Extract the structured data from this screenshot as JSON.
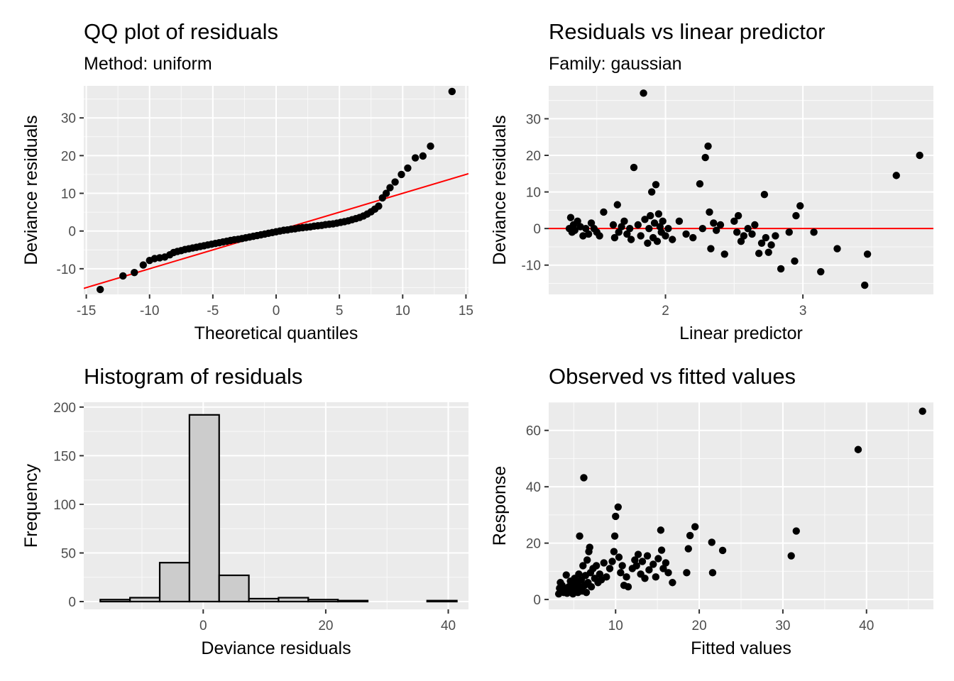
{
  "chart_data": [
    {
      "type": "scatter",
      "title": "QQ plot of residuals",
      "subtitle": "Method: uniform",
      "xlabel": "Theoretical quantiles",
      "ylabel": "Deviance residuals",
      "xlim": [
        -15.2,
        15.2
      ],
      "ylim": [
        -16.8,
        38.5
      ],
      "xticks": [
        -15,
        -10,
        -5,
        0,
        5,
        10,
        15
      ],
      "xtick_labels": [
        "-15",
        "-10",
        "-5",
        "0",
        "5",
        "10",
        "15"
      ],
      "yticks": [
        -10,
        0,
        10,
        20,
        30
      ],
      "ytick_labels": [
        "-10",
        "0",
        "10",
        "20",
        "30"
      ],
      "reference_line": {
        "intercept": 0,
        "slope": 1,
        "color": "#ff0000"
      },
      "point_color": "#000000",
      "grid": true,
      "background": "#ebebeb",
      "points": [
        [
          -13.9,
          -15.5
        ],
        [
          -12.1,
          -11.9
        ],
        [
          -11.2,
          -11.0
        ],
        [
          -10.5,
          -9.0
        ],
        [
          -10.0,
          -7.8
        ],
        [
          -9.6,
          -7.3
        ],
        [
          -9.2,
          -7.1
        ],
        [
          -8.8,
          -6.9
        ],
        [
          -8.4,
          -6.3
        ],
        [
          -8.1,
          -5.7
        ],
        [
          -7.8,
          -5.4
        ],
        [
          -7.5,
          -5.2
        ],
        [
          -7.2,
          -4.9
        ],
        [
          -6.9,
          -4.7
        ],
        [
          -6.6,
          -4.5
        ],
        [
          -6.3,
          -4.3
        ],
        [
          -6.0,
          -4.1
        ],
        [
          -5.7,
          -3.9
        ],
        [
          -5.4,
          -3.7
        ],
        [
          -5.1,
          -3.5
        ],
        [
          -4.8,
          -3.3
        ],
        [
          -4.5,
          -3.1
        ],
        [
          -4.2,
          -2.9
        ],
        [
          -3.9,
          -2.7
        ],
        [
          -3.6,
          -2.5
        ],
        [
          -3.3,
          -2.3
        ],
        [
          -3.0,
          -2.2
        ],
        [
          -2.7,
          -2.0
        ],
        [
          -2.4,
          -1.8
        ],
        [
          -2.1,
          -1.6
        ],
        [
          -1.8,
          -1.4
        ],
        [
          -1.5,
          -1.2
        ],
        [
          -1.2,
          -1.0
        ],
        [
          -0.9,
          -0.8
        ],
        [
          -0.6,
          -0.6
        ],
        [
          -0.3,
          -0.4
        ],
        [
          0.0,
          -0.2
        ],
        [
          0.3,
          0.0
        ],
        [
          0.6,
          0.2
        ],
        [
          0.9,
          0.3
        ],
        [
          1.2,
          0.5
        ],
        [
          1.5,
          0.6
        ],
        [
          1.8,
          0.8
        ],
        [
          2.1,
          0.9
        ],
        [
          2.4,
          1.0
        ],
        [
          2.7,
          1.1
        ],
        [
          3.0,
          1.3
        ],
        [
          3.3,
          1.4
        ],
        [
          3.6,
          1.5
        ],
        [
          3.9,
          1.7
        ],
        [
          4.2,
          1.8
        ],
        [
          4.5,
          1.9
        ],
        [
          4.8,
          2.1
        ],
        [
          5.1,
          2.3
        ],
        [
          5.4,
          2.5
        ],
        [
          5.7,
          2.7
        ],
        [
          6.0,
          3.0
        ],
        [
          6.3,
          3.3
        ],
        [
          6.6,
          3.6
        ],
        [
          6.9,
          4.0
        ],
        [
          7.2,
          4.5
        ],
        [
          7.5,
          5.1
        ],
        [
          7.8,
          5.8
        ],
        [
          8.1,
          6.6
        ],
        [
          8.4,
          8.8
        ],
        [
          8.7,
          10.0
        ],
        [
          9.0,
          11.5
        ],
        [
          9.4,
          13.0
        ],
        [
          9.9,
          15.0
        ],
        [
          10.4,
          16.7
        ],
        [
          11.0,
          19.4
        ],
        [
          11.6,
          19.9
        ],
        [
          12.2,
          22.5
        ],
        [
          13.9,
          37.0
        ]
      ]
    },
    {
      "type": "scatter",
      "title": "Residuals vs linear predictor",
      "subtitle": "Family: gaussian",
      "xlabel": "Linear predictor",
      "ylabel": "Deviance residuals",
      "xlim": [
        1.15,
        3.95
      ],
      "ylim": [
        -18,
        39
      ],
      "xticks": [
        2,
        3
      ],
      "xtick_labels": [
        "2",
        "3"
      ],
      "yticks": [
        -10,
        0,
        10,
        20,
        30
      ],
      "ytick_labels": [
        "-10",
        "0",
        "10",
        "20",
        "30"
      ],
      "reference_line": {
        "y": 0,
        "color": "#ff0000"
      },
      "point_color": "#000000",
      "grid": true,
      "background": "#ebebeb",
      "points": [
        [
          1.3,
          0.0
        ],
        [
          1.31,
          3.0
        ],
        [
          1.32,
          -1.0
        ],
        [
          1.33,
          1.0
        ],
        [
          1.34,
          -0.5
        ],
        [
          1.36,
          2.0
        ],
        [
          1.38,
          0.5
        ],
        [
          1.4,
          -2.0
        ],
        [
          1.42,
          0.0
        ],
        [
          1.44,
          -1.5
        ],
        [
          1.46,
          1.5
        ],
        [
          1.48,
          0.0
        ],
        [
          1.5,
          -1.0
        ],
        [
          1.52,
          -2.0
        ],
        [
          1.55,
          4.5
        ],
        [
          1.62,
          1.0
        ],
        [
          1.63,
          -2.5
        ],
        [
          1.65,
          6.5
        ],
        [
          1.66,
          -1.0
        ],
        [
          1.68,
          0.5
        ],
        [
          1.7,
          2.0
        ],
        [
          1.72,
          -1.5
        ],
        [
          1.74,
          0.0
        ],
        [
          1.75,
          -3.0
        ],
        [
          1.77,
          16.7
        ],
        [
          1.8,
          1.0
        ],
        [
          1.82,
          -2.0
        ],
        [
          1.84,
          37.0
        ],
        [
          1.85,
          2.5
        ],
        [
          1.87,
          -4.0
        ],
        [
          1.88,
          0.0
        ],
        [
          1.89,
          3.5
        ],
        [
          1.9,
          10.0
        ],
        [
          1.91,
          -2.5
        ],
        [
          1.92,
          1.5
        ],
        [
          1.93,
          12.0
        ],
        [
          1.94,
          -3.5
        ],
        [
          1.95,
          4.0
        ],
        [
          1.96,
          0.5
        ],
        [
          1.97,
          -1.0
        ],
        [
          1.98,
          2.0
        ],
        [
          2.0,
          -2.0
        ],
        [
          2.02,
          0.0
        ],
        [
          2.05,
          -3.0
        ],
        [
          2.1,
          2.0
        ],
        [
          2.15,
          -1.5
        ],
        [
          2.2,
          -2.5
        ],
        [
          2.25,
          12.2
        ],
        [
          2.27,
          0.0
        ],
        [
          2.29,
          19.4
        ],
        [
          2.31,
          22.5
        ],
        [
          2.32,
          4.5
        ],
        [
          2.33,
          -5.5
        ],
        [
          2.35,
          1.5
        ],
        [
          2.37,
          -0.5
        ],
        [
          2.4,
          1.0
        ],
        [
          2.43,
          -7.0
        ],
        [
          2.5,
          2.0
        ],
        [
          2.52,
          -1.0
        ],
        [
          2.53,
          3.5
        ],
        [
          2.55,
          -3.5
        ],
        [
          2.57,
          -2.0
        ],
        [
          2.6,
          0.0
        ],
        [
          2.63,
          -1.5
        ],
        [
          2.65,
          1.0
        ],
        [
          2.68,
          -6.8
        ],
        [
          2.7,
          -4.0
        ],
        [
          2.72,
          9.3
        ],
        [
          2.73,
          -2.5
        ],
        [
          2.75,
          -6.5
        ],
        [
          2.77,
          -4.5
        ],
        [
          2.8,
          -2.0
        ],
        [
          2.84,
          -11.0
        ],
        [
          2.9,
          -1.0
        ],
        [
          2.94,
          -8.9
        ],
        [
          2.95,
          3.5
        ],
        [
          2.98,
          6.2
        ],
        [
          3.08,
          -1.0
        ],
        [
          3.13,
          -11.8
        ],
        [
          3.25,
          -5.5
        ],
        [
          3.45,
          -15.5
        ],
        [
          3.47,
          -7.0
        ],
        [
          3.68,
          14.5
        ],
        [
          3.85,
          20.0
        ]
      ]
    },
    {
      "type": "bar",
      "title": "Histogram of residuals",
      "xlabel": "Deviance residuals",
      "ylabel": "Frequency",
      "xlim": [
        -19.5,
        43.3
      ],
      "ylim": [
        -8,
        205
      ],
      "xticks": [
        0,
        20,
        40
      ],
      "xtick_labels": [
        "0",
        "20",
        "40"
      ],
      "yticks": [
        0,
        50,
        100,
        150,
        200
      ],
      "ytick_labels": [
        "0",
        "50",
        "100",
        "150",
        "200"
      ],
      "bin_width": 4.85,
      "bin_left_edges": [
        -16.8,
        -11.95,
        -7.1,
        -2.25,
        2.6,
        7.45,
        12.3,
        17.15,
        22.0,
        26.85,
        31.7,
        36.55
      ],
      "values": [
        2,
        4,
        40,
        192,
        27,
        3,
        4,
        2,
        1,
        0,
        0,
        1
      ],
      "bar_fill": "#cccccc",
      "bar_stroke": "#000000",
      "grid": true,
      "background": "#ebebeb"
    },
    {
      "type": "scatter",
      "title": "Observed vs fitted values",
      "xlabel": "Fitted values",
      "ylabel": "Response",
      "xlim": [
        2.0,
        48.0
      ],
      "ylim": [
        -3.5,
        70.0
      ],
      "xticks": [
        10,
        20,
        30,
        40
      ],
      "xtick_labels": [
        "10",
        "20",
        "30",
        "40"
      ],
      "yticks": [
        0,
        20,
        40,
        60
      ],
      "ytick_labels": [
        "0",
        "20",
        "40",
        "60"
      ],
      "point_color": "#000000",
      "grid": true,
      "background": "#ebebeb",
      "points": [
        [
          3.2,
          2.0
        ],
        [
          3.3,
          4.0
        ],
        [
          3.4,
          6.0
        ],
        [
          3.5,
          3.0
        ],
        [
          3.6,
          5.0
        ],
        [
          3.8,
          2.5
        ],
        [
          4.0,
          3.5
        ],
        [
          4.1,
          8.7
        ],
        [
          4.2,
          2.2
        ],
        [
          4.4,
          4.5
        ],
        [
          4.6,
          6.5
        ],
        [
          4.7,
          3.0
        ],
        [
          4.9,
          2.0
        ],
        [
          5.0,
          5.5
        ],
        [
          5.1,
          7.5
        ],
        [
          5.2,
          4.0
        ],
        [
          5.3,
          3.2
        ],
        [
          5.4,
          6.0
        ],
        [
          5.5,
          2.5
        ],
        [
          5.6,
          9.0
        ],
        [
          5.7,
          22.5
        ],
        [
          5.8,
          4.5
        ],
        [
          5.9,
          7.0
        ],
        [
          6.0,
          3.0
        ],
        [
          6.1,
          12.0
        ],
        [
          6.2,
          43.2
        ],
        [
          6.3,
          5.0
        ],
        [
          6.4,
          8.5
        ],
        [
          6.5,
          2.5
        ],
        [
          6.6,
          14.0
        ],
        [
          6.7,
          6.0
        ],
        [
          6.8,
          17.0
        ],
        [
          6.9,
          18.5
        ],
        [
          7.0,
          9.5
        ],
        [
          7.1,
          4.5
        ],
        [
          7.3,
          11.0
        ],
        [
          7.5,
          7.5
        ],
        [
          7.7,
          12.0
        ],
        [
          7.9,
          6.0
        ],
        [
          8.1,
          9.0
        ],
        [
          8.3,
          7.0
        ],
        [
          8.6,
          13.0
        ],
        [
          8.9,
          8.0
        ],
        [
          9.3,
          11.0
        ],
        [
          9.6,
          13.5
        ],
        [
          9.8,
          17.0
        ],
        [
          9.9,
          22.5
        ],
        [
          10.0,
          29.5
        ],
        [
          10.3,
          32.8
        ],
        [
          10.4,
          15.0
        ],
        [
          10.6,
          9.5
        ],
        [
          10.8,
          12.0
        ],
        [
          11.0,
          5.0
        ],
        [
          11.3,
          8.0
        ],
        [
          11.5,
          4.5
        ],
        [
          12.0,
          11.0
        ],
        [
          12.3,
          14.0
        ],
        [
          12.5,
          12.0
        ],
        [
          12.7,
          16.0
        ],
        [
          13.0,
          9.0
        ],
        [
          13.2,
          13.5
        ],
        [
          13.5,
          7.5
        ],
        [
          13.8,
          15.5
        ],
        [
          14.0,
          10.5
        ],
        [
          14.5,
          12.5
        ],
        [
          14.8,
          8.0
        ],
        [
          15.1,
          14.5
        ],
        [
          15.4,
          24.6
        ],
        [
          15.5,
          17.5
        ],
        [
          15.7,
          11.0
        ],
        [
          16.0,
          13.0
        ],
        [
          16.3,
          9.5
        ],
        [
          16.8,
          6.0
        ],
        [
          18.5,
          9.5
        ],
        [
          18.7,
          18.0
        ],
        [
          18.9,
          22.7
        ],
        [
          19.5,
          25.8
        ],
        [
          21.5,
          20.3
        ],
        [
          21.6,
          9.5
        ],
        [
          22.8,
          17.4
        ],
        [
          31.0,
          15.5
        ],
        [
          31.6,
          24.3
        ],
        [
          39.0,
          53.2
        ],
        [
          46.7,
          66.8
        ]
      ]
    }
  ]
}
